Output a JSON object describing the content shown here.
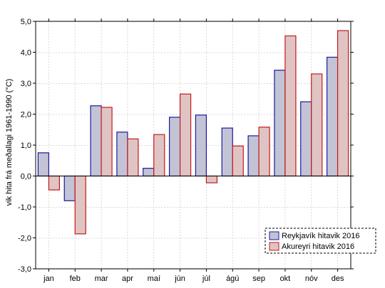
{
  "chart_data": {
    "type": "bar",
    "title": "",
    "xlabel": "",
    "ylabel": "vik hita frá meðallagi 1961-1990 (°C)",
    "categories": [
      "jan",
      "feb",
      "mar",
      "apr",
      "maí",
      "jún",
      "júl",
      "ágú",
      "sep",
      "okt",
      "nóv",
      "des"
    ],
    "series": [
      {
        "name": "Reykjavík hitavik 2016",
        "values": [
          0.75,
          -0.8,
          2.27,
          1.42,
          0.25,
          1.9,
          1.97,
          1.55,
          1.3,
          3.42,
          2.4,
          3.84
        ],
        "fill": "#c3c3d6",
        "stroke": "#1a1aa0"
      },
      {
        "name": "Akureyri hitavik 2016",
        "values": [
          -0.45,
          -1.87,
          2.22,
          1.2,
          1.34,
          2.65,
          -0.22,
          0.97,
          1.58,
          4.53,
          3.3,
          4.7
        ],
        "fill": "#e0c4c4",
        "stroke": "#c41a1a"
      }
    ],
    "ylim": [
      -3.0,
      5.0
    ],
    "yticks": [
      "-3,0",
      "-2,0",
      "-1,0",
      "0,0",
      "1,0",
      "2,0",
      "3,0",
      "4,0",
      "5,0"
    ],
    "grid": true,
    "legend_position": "bottom-right"
  }
}
